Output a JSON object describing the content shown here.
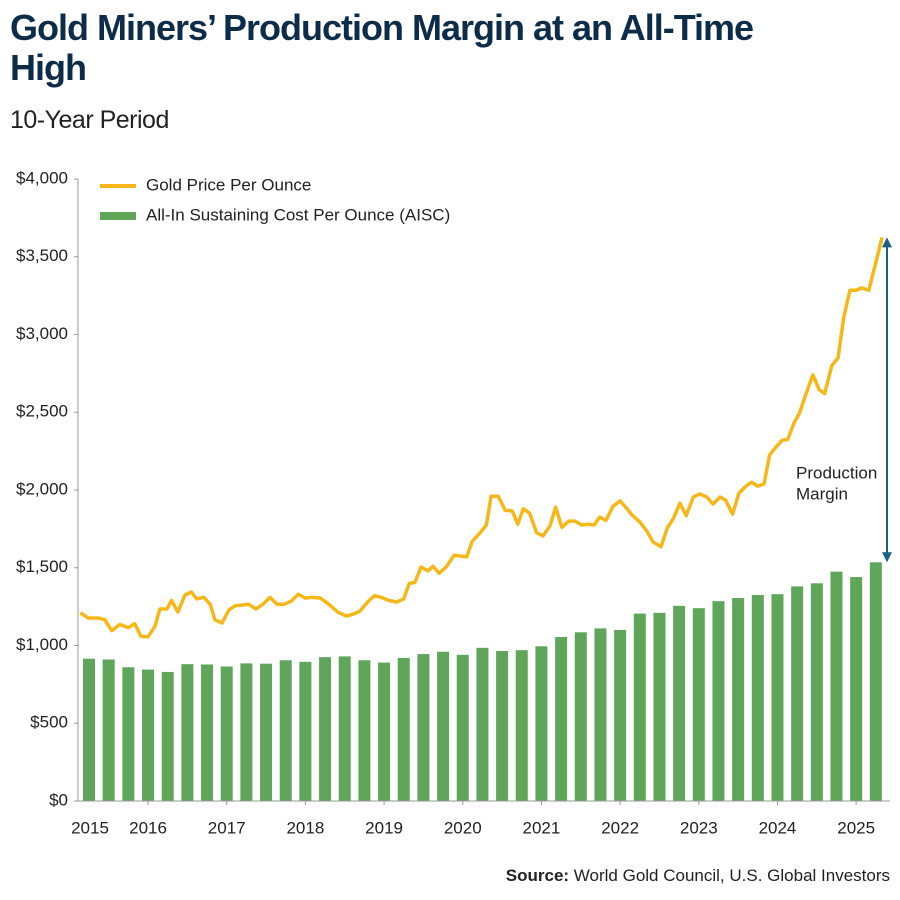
{
  "chart_data": {
    "type": "combo",
    "title": "Gold Miners’ Production Margin at an All-Time High",
    "subtitle": "10-Year Period",
    "series": [
      {
        "name": "Gold Price Per Ounce",
        "type": "line",
        "color": "#f5b818",
        "x": [
          2015.14,
          2015.24,
          2015.37,
          2015.45,
          2015.54,
          2015.64,
          2015.75,
          2015.83,
          2015.91,
          2016.0,
          2016.09,
          2016.15,
          2016.24,
          2016.3,
          2016.38,
          2016.47,
          2016.55,
          2016.62,
          2016.71,
          2016.79,
          2016.85,
          2016.94,
          2017.03,
          2017.11,
          2017.19,
          2017.28,
          2017.37,
          2017.46,
          2017.55,
          2017.64,
          2017.73,
          2017.82,
          2017.91,
          2018.0,
          2018.08,
          2018.19,
          2018.3,
          2018.41,
          2018.52,
          2018.6,
          2018.69,
          2018.81,
          2018.88,
          2018.96,
          2019.06,
          2019.16,
          2019.25,
          2019.32,
          2019.39,
          2019.47,
          2019.56,
          2019.62,
          2019.7,
          2019.79,
          2019.89,
          2019.98,
          2020.05,
          2020.12,
          2020.22,
          2020.3,
          2020.36,
          2020.45,
          2020.54,
          2020.63,
          2020.7,
          2020.77,
          2020.85,
          2020.94,
          2021.02,
          2021.11,
          2021.18,
          2021.26,
          2021.35,
          2021.43,
          2021.51,
          2021.59,
          2021.67,
          2021.74,
          2021.82,
          2021.91,
          2022.0,
          2022.07,
          2022.16,
          2022.25,
          2022.34,
          2022.42,
          2022.52,
          2022.6,
          2022.68,
          2022.76,
          2022.84,
          2022.93,
          2023.01,
          2023.1,
          2023.18,
          2023.27,
          2023.34,
          2023.43,
          2023.51,
          2023.6,
          2023.67,
          2023.75,
          2023.83,
          2023.9,
          2023.98,
          2024.06,
          2024.13,
          2024.21,
          2024.28,
          2024.36,
          2024.45,
          2024.53,
          2024.6,
          2024.69,
          2024.77,
          2024.84,
          2024.92,
          2025.0,
          2025.07,
          2025.16,
          2025.24,
          2025.33
        ],
        "values": [
          1210,
          1177,
          1177,
          1165,
          1095,
          1135,
          1115,
          1140,
          1060,
          1055,
          1125,
          1235,
          1235,
          1290,
          1215,
          1325,
          1345,
          1300,
          1310,
          1265,
          1165,
          1145,
          1230,
          1255,
          1260,
          1265,
          1235,
          1265,
          1310,
          1265,
          1265,
          1285,
          1330,
          1305,
          1310,
          1305,
          1265,
          1215,
          1190,
          1200,
          1220,
          1290,
          1320,
          1310,
          1290,
          1280,
          1300,
          1400,
          1405,
          1505,
          1480,
          1510,
          1465,
          1505,
          1580,
          1575,
          1570,
          1670,
          1725,
          1775,
          1960,
          1960,
          1870,
          1865,
          1780,
          1880,
          1850,
          1725,
          1705,
          1770,
          1890,
          1760,
          1800,
          1800,
          1775,
          1780,
          1775,
          1825,
          1805,
          1895,
          1930,
          1890,
          1835,
          1795,
          1735,
          1665,
          1635,
          1755,
          1820,
          1915,
          1835,
          1955,
          1975,
          1955,
          1910,
          1955,
          1935,
          1845,
          1980,
          2025,
          2050,
          2025,
          2040,
          2225,
          2275,
          2320,
          2325,
          2430,
          2495,
          2615,
          2740,
          2645,
          2620,
          2800,
          2850,
          3105,
          3285,
          3285,
          3300,
          3285,
          3445,
          3625
        ]
      },
      {
        "name": "All-In Sustaining Cost Per Ounce (AISC)",
        "type": "bar",
        "color": "#5fa55a",
        "x": [
          2015.25,
          2015.5,
          2015.75,
          2016.0,
          2016.25,
          2016.5,
          2016.75,
          2017.0,
          2017.25,
          2017.5,
          2017.75,
          2018.0,
          2018.25,
          2018.5,
          2018.75,
          2019.0,
          2019.25,
          2019.5,
          2019.75,
          2020.0,
          2020.25,
          2020.5,
          2020.75,
          2021.0,
          2021.25,
          2021.5,
          2021.75,
          2022.0,
          2022.25,
          2022.5,
          2022.75,
          2023.0,
          2023.25,
          2023.5,
          2023.75,
          2024.0,
          2024.25,
          2024.5,
          2024.75,
          2025.0,
          2025.25
        ],
        "values": [
          915,
          910,
          860,
          845,
          830,
          880,
          878,
          865,
          885,
          883,
          905,
          895,
          925,
          930,
          905,
          890,
          920,
          945,
          960,
          940,
          985,
          965,
          970,
          995,
          1055,
          1085,
          1110,
          1100,
          1205,
          1210,
          1255,
          1240,
          1285,
          1305,
          1325,
          1330,
          1380,
          1400,
          1475,
          1440,
          1535
        ]
      }
    ],
    "xlim": [
      2015.11,
      2025.43
    ],
    "xticks": [
      2015,
      2016,
      2017,
      2018,
      2019,
      2020,
      2021,
      2022,
      2023,
      2024,
      2025
    ],
    "ylim": [
      0,
      4000
    ],
    "yticks": [
      {
        "value": 0,
        "label": "$0"
      },
      {
        "value": 500,
        "label": "$500"
      },
      {
        "value": 1000,
        "label": "$1,000"
      },
      {
        "value": 1500,
        "label": "$1,500"
      },
      {
        "value": 2000,
        "label": "$2,000"
      },
      {
        "value": 2500,
        "label": "$2,500"
      },
      {
        "value": 3000,
        "label": "$3,000"
      },
      {
        "value": 3500,
        "label": "$3,500"
      },
      {
        "value": 4000,
        "label": "$4,000"
      }
    ],
    "grid": false,
    "legend": "top-left",
    "annotation": [
      "Production",
      "Margin"
    ],
    "source_label": "Source:",
    "source": "World Gold Council, U.S. Global Investors"
  }
}
